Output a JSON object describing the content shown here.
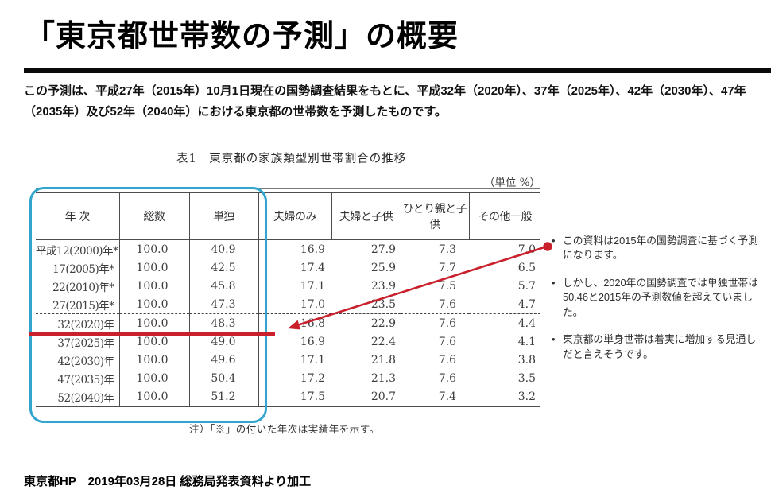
{
  "document": {
    "title": "「東京都世帯数の予測」の概要",
    "intro": "この予測は、平成27年（2015年）10月1日現在の国勢調査結果をもとに、平成32年（2020年）、37年（2025年）、42年（2030年）、47年（2035年）及び52年（2040年）における東京都の世帯数を予測したものです。",
    "source_footer": "東京都HP　2019年03月28日 総務局発表資料より加工"
  },
  "table": {
    "caption": "表1　東京都の家族類型別世帯割合の推移",
    "unit_label": "（単位 %）",
    "headers": [
      "年 次",
      "総数",
      "単独",
      "夫婦のみ",
      "夫婦と子供",
      "ひとり親と子供",
      "その他一般"
    ],
    "rows": [
      [
        "平成12(2000)年*",
        "100.0",
        "40.9",
        "16.9",
        "27.9",
        "7.3",
        "7.0"
      ],
      [
        "17(2005)年*",
        "100.0",
        "42.5",
        "17.4",
        "25.9",
        "7.7",
        "6.5"
      ],
      [
        "22(2010)年*",
        "100.0",
        "45.8",
        "17.1",
        "23.9",
        "7.5",
        "5.7"
      ],
      [
        "27(2015)年*",
        "100.0",
        "47.3",
        "17.0",
        "23.5",
        "7.6",
        "4.7"
      ],
      [
        "32(2020)年",
        "100.0",
        "48.3",
        "16.8",
        "22.9",
        "7.6",
        "4.4"
      ],
      [
        "37(2025)年",
        "100.0",
        "49.0",
        "16.9",
        "22.4",
        "7.6",
        "4.1"
      ],
      [
        "42(2030)年",
        "100.0",
        "49.6",
        "17.1",
        "21.8",
        "7.6",
        "3.8"
      ],
      [
        "47(2035)年",
        "100.0",
        "50.4",
        "17.2",
        "21.3",
        "7.6",
        "3.5"
      ],
      [
        "52(2040)年",
        "100.0",
        "51.2",
        "17.5",
        "20.7",
        "7.4",
        "3.2"
      ]
    ],
    "dashed_before_row": 4,
    "highlighted_row": 4,
    "note": "注）「※」の付いた年次は実績年を示す。"
  },
  "annotations": {
    "bullets": [
      "この資料は2015年の国勢調査に基づく予測になります。",
      "しかし、2020年の国勢調査では単独世帯は50.46と2015年の予測数値を超えていました。",
      "東京都の単身世帯は着実に増加する見通しだと言えそうです。"
    ],
    "highlight_box_color": "#31a5cd",
    "emphasis_color": "#c9202c"
  }
}
